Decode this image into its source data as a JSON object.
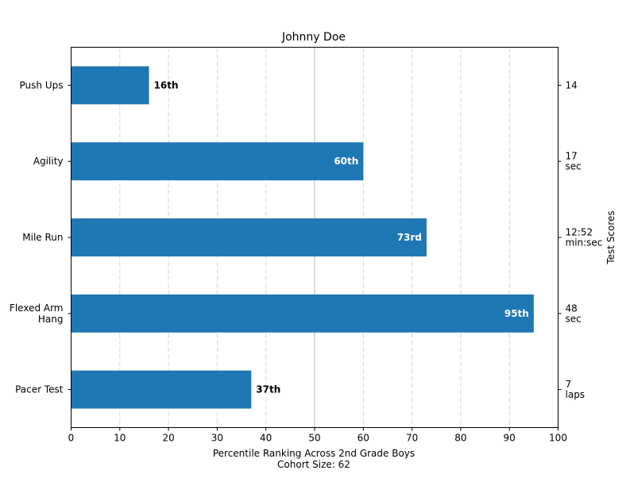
{
  "chart_data": {
    "type": "bar",
    "orientation": "horizontal",
    "title": "Johnny Doe",
    "xlabel_lines": [
      "Percentile Ranking Across 2nd Grade Boys",
      "Cohort Size: 62"
    ],
    "right_ylabel": "Test Scores",
    "xlim": [
      0,
      100
    ],
    "xticks": [
      0,
      10,
      20,
      30,
      40,
      50,
      60,
      70,
      80,
      90,
      100
    ],
    "grid": "vertical dashed",
    "median_line": 50,
    "bar_color": "#1f77b4",
    "bars": [
      {
        "category": "Push Ups",
        "category_lines": [
          "Push Ups"
        ],
        "value": 16,
        "label": "16th",
        "score_lines": [
          "14"
        ]
      },
      {
        "category": "Agility",
        "category_lines": [
          "Agility"
        ],
        "value": 60,
        "label": "60th",
        "score_lines": [
          "17",
          "sec"
        ]
      },
      {
        "category": "Mile Run",
        "category_lines": [
          "Mile Run"
        ],
        "value": 73,
        "label": "73rd",
        "score_lines": [
          "12:52",
          "min:sec"
        ]
      },
      {
        "category": "Flexed Arm Hang",
        "category_lines": [
          "Flexed Arm",
          "Hang"
        ],
        "value": 95,
        "label": "95th",
        "score_lines": [
          "48",
          "sec"
        ]
      },
      {
        "category": "Pacer Test",
        "category_lines": [
          "Pacer Test"
        ],
        "value": 37,
        "label": "37th",
        "score_lines": [
          "7",
          "laps"
        ]
      }
    ]
  }
}
